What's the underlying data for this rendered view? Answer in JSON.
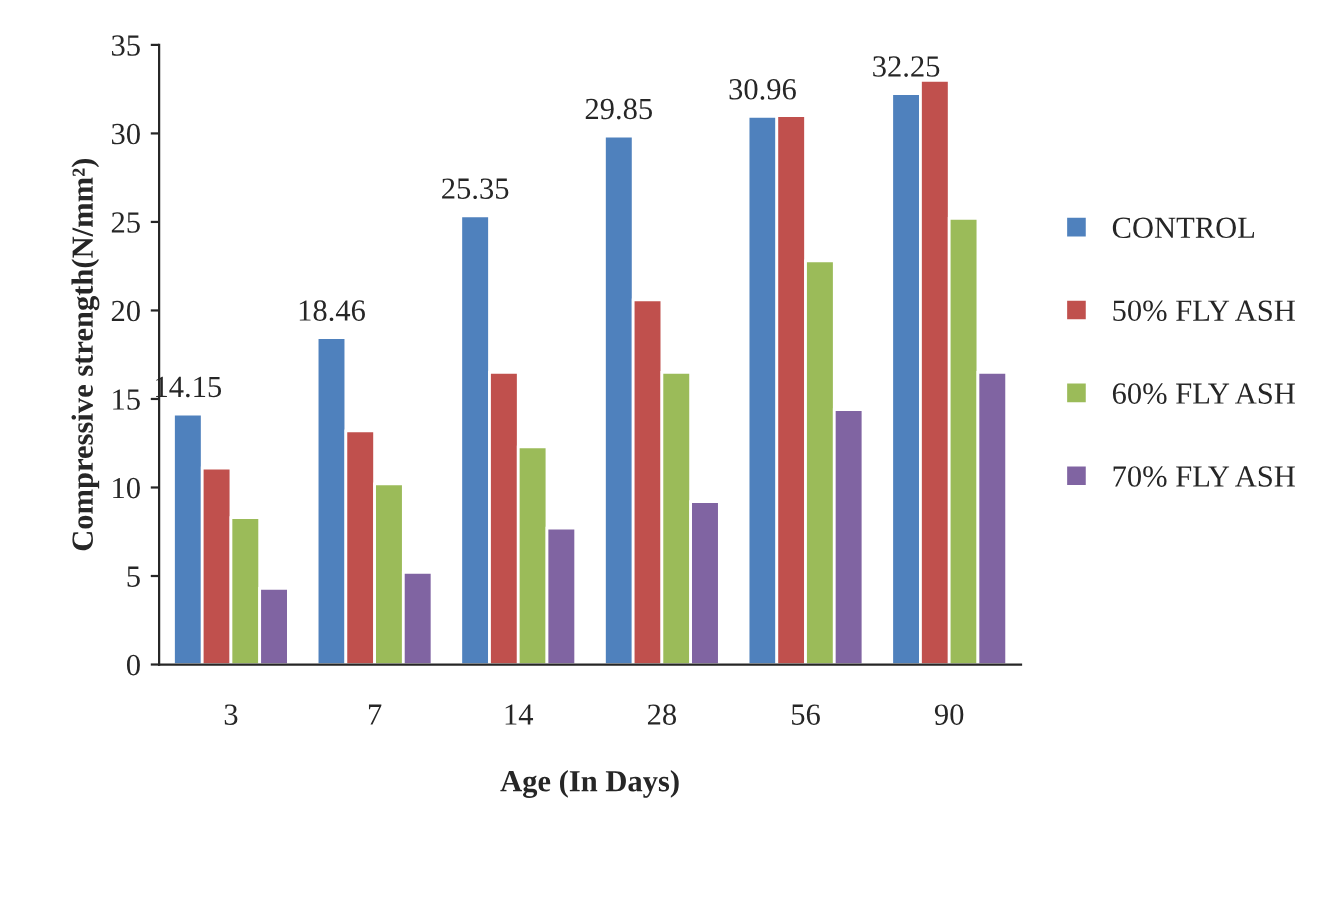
{
  "chart_data": {
    "type": "bar",
    "xlabel": "Age (In Days)",
    "ylabel": "Compressive strength(N/mm²)",
    "categories": [
      "3",
      "7",
      "14",
      "28",
      "56",
      "90"
    ],
    "series": [
      {
        "name": "CONTROL",
        "color": "#4f81bd",
        "values": [
          14.15,
          18.46,
          25.35,
          29.85,
          30.96,
          32.25
        ],
        "value_labels": [
          "14.15",
          "18.46",
          "25.35",
          "29.85",
          "30.96",
          "32.25"
        ]
      },
      {
        "name": "50% FLY ASH",
        "color": "#c0504d",
        "values": [
          11.1,
          13.2,
          16.5,
          20.6,
          31.0,
          33.0
        ]
      },
      {
        "name": "60% FLY ASH",
        "color": "#9bbb59",
        "values": [
          8.3,
          10.2,
          12.3,
          16.5,
          22.8,
          25.2
        ]
      },
      {
        "name": "70% FLY ASH",
        "color": "#8064a2",
        "values": [
          4.3,
          5.2,
          7.7,
          9.2,
          14.4,
          16.5
        ]
      }
    ],
    "ylim": [
      0,
      35
    ],
    "yticks": [
      0,
      5,
      10,
      15,
      20,
      25,
      30,
      35
    ],
    "grid": false,
    "legend": "right"
  }
}
